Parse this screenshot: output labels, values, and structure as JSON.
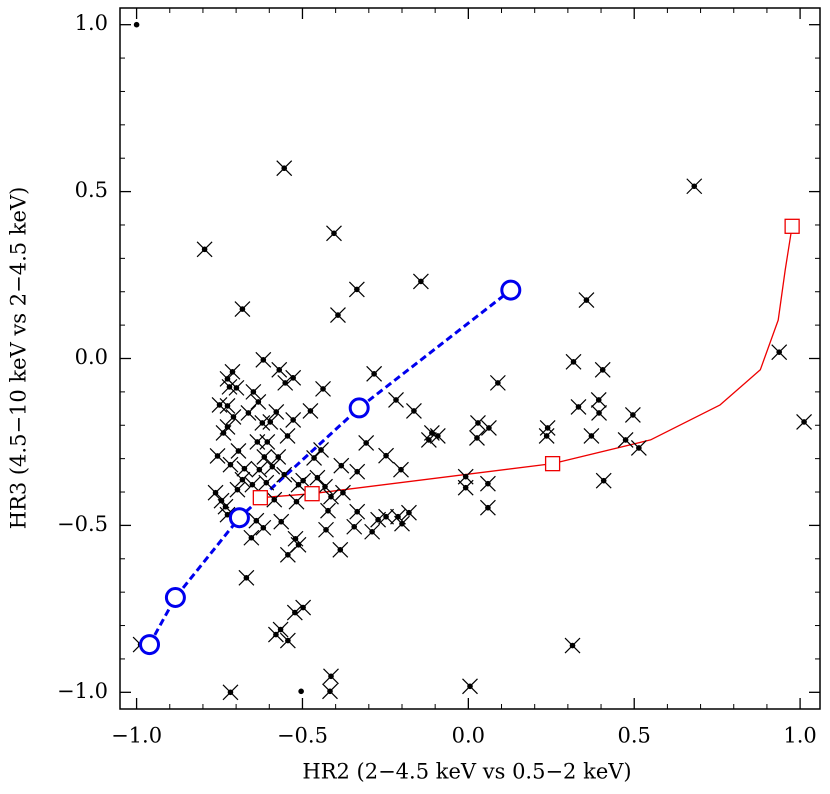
{
  "chart_data": {
    "type": "scatter",
    "x_label": "HR2 (2−4.5 keV vs 0.5−2 keV)",
    "y_label": "HR3 (4.5−10 keV vs 2−4.5 keV)",
    "xlim": [
      -1.05,
      1.06
    ],
    "ylim": [
      -1.05,
      1.05
    ],
    "xticks": [
      {
        "value": -1,
        "label": "−1.0"
      },
      {
        "value": -0.5,
        "label": "−0.5"
      },
      {
        "value": 0,
        "label": "0.0"
      },
      0.5,
      {
        "value": 1,
        "label": "1.0"
      }
    ],
    "yticks": [
      {
        "value": -1,
        "label": "−1.0"
      },
      {
        "value": -0.5,
        "label": "−0.5"
      },
      {
        "value": 0,
        "label": "0.0"
      },
      0.5,
      {
        "value": 1,
        "label": "1.0"
      }
    ],
    "series": [
      {
        "color": "#000000",
        "marker": "x-dot",
        "line": "none",
        "x": [
          -0.555,
          -0.795,
          -0.405,
          -0.336,
          -0.143,
          -0.393,
          -0.681,
          0.681,
          0.356,
          0.937,
          1.012,
          -0.618,
          -0.284,
          0.089,
          0.317,
          0.405,
          0.332,
          0.393,
          0.394,
          0.496,
          0.371,
          0.474,
          0.514,
          0.239,
          0.236,
          0.408,
          0.029,
          0.062,
          0.026,
          -0.11,
          -0.092,
          -0.119,
          -0.218,
          -0.164,
          -0.008,
          -0.008,
          0.059,
          0.059,
          0.005,
          0.314,
          -0.203,
          -0.248,
          -0.308,
          -0.335,
          -0.383,
          -0.378,
          -0.344,
          -0.335,
          -0.29,
          -0.272,
          -0.248,
          -0.212,
          -0.2,
          -0.179,
          -0.438,
          -0.476,
          -0.444,
          -0.432,
          -0.386,
          -0.429,
          -0.414,
          -0.455,
          -0.465,
          -0.498,
          -0.518,
          -0.521,
          -0.512,
          -0.544,
          -0.498,
          -0.523,
          -0.566,
          -0.544,
          -0.58,
          -0.669,
          -0.717,
          -0.414,
          -0.417,
          -0.423,
          -0.528,
          -0.552,
          -0.57,
          -0.633,
          -0.597,
          -0.606,
          -0.615,
          -0.63,
          -0.555,
          -0.573,
          -0.545,
          -0.579,
          -0.528,
          -0.648,
          -0.663,
          -0.699,
          -0.726,
          -0.726,
          -0.738,
          -0.75,
          -0.756,
          -0.762,
          -0.732,
          -0.726,
          -0.693,
          -0.675,
          -0.651,
          -0.639,
          -0.654,
          -0.618,
          -0.585,
          -0.564,
          -0.512,
          -0.696,
          -0.681,
          -0.717,
          -0.636,
          -0.621,
          -0.726,
          -0.711,
          -0.72,
          -0.744,
          -0.609,
          -0.591,
          -0.708,
          -0.988
        ],
        "values": [
          0.57,
          0.327,
          0.375,
          0.207,
          0.231,
          0.13,
          0.148,
          0.516,
          0.175,
          0.019,
          -0.19,
          -0.004,
          -0.046,
          -0.073,
          -0.01,
          -0.034,
          -0.145,
          -0.124,
          -0.163,
          -0.169,
          -0.232,
          -0.244,
          -0.268,
          -0.208,
          -0.232,
          -0.366,
          -0.193,
          -0.208,
          -0.238,
          -0.223,
          -0.232,
          -0.244,
          -0.124,
          -0.157,
          -0.354,
          -0.387,
          -0.375,
          -0.447,
          -0.982,
          -0.86,
          -0.333,
          -0.291,
          -0.253,
          -0.339,
          -0.321,
          -0.402,
          -0.504,
          -0.459,
          -0.519,
          -0.483,
          -0.474,
          -0.474,
          -0.495,
          -0.462,
          -0.091,
          -0.157,
          -0.274,
          -0.384,
          -0.573,
          -0.513,
          -0.414,
          -0.357,
          -0.298,
          -0.366,
          -0.429,
          -0.54,
          -0.558,
          -0.588,
          -0.746,
          -0.761,
          -0.812,
          -0.845,
          -0.827,
          -0.657,
          -1.0,
          -0.952,
          -0.997,
          -0.456,
          -0.058,
          -0.073,
          -0.034,
          -0.13,
          -0.19,
          -0.25,
          -0.295,
          -0.333,
          -0.348,
          -0.295,
          -0.232,
          -0.16,
          -0.184,
          -0.1,
          -0.163,
          -0.088,
          -0.061,
          -0.142,
          -0.223,
          -0.139,
          -0.292,
          -0.402,
          -0.444,
          -0.468,
          -0.277,
          -0.33,
          -0.378,
          -0.486,
          -0.537,
          -0.507,
          -0.423,
          -0.489,
          -0.378,
          -0.393,
          -0.363,
          -0.318,
          -0.25,
          -0.193,
          -0.205,
          -0.04,
          -0.085,
          -0.426,
          -0.372,
          -0.324,
          -0.175,
          -0.857
        ]
      },
      {
        "color": "#000000",
        "marker": "dot",
        "line": "none",
        "x": [
          -1.0,
          -0.504
        ],
        "values": [
          1.0,
          -0.997
        ]
      },
      {
        "color": "#0000ee",
        "marker": "circle",
        "line": "dashed",
        "x": [
          -0.961,
          -0.883,
          -0.69,
          -0.329,
          0.128
        ],
        "values": [
          -0.857,
          -0.716,
          -0.477,
          -0.148,
          0.205
        ]
      },
      {
        "color": "#ee0000",
        "marker": "none",
        "line": "solid",
        "x": [
          -0.627,
          -0.471,
          0.254,
          0.549,
          0.759,
          0.88,
          0.934,
          0.955,
          0.976
        ],
        "values": [
          -0.417,
          -0.405,
          -0.315,
          -0.244,
          -0.139,
          -0.034,
          0.115,
          0.265,
          0.396
        ]
      },
      {
        "color": "#ee0000",
        "marker": "square",
        "line": "none",
        "x": [
          -0.627,
          -0.471,
          0.254,
          0.976
        ],
        "values": [
          -0.417,
          -0.405,
          -0.315,
          0.396
        ]
      }
    ]
  }
}
